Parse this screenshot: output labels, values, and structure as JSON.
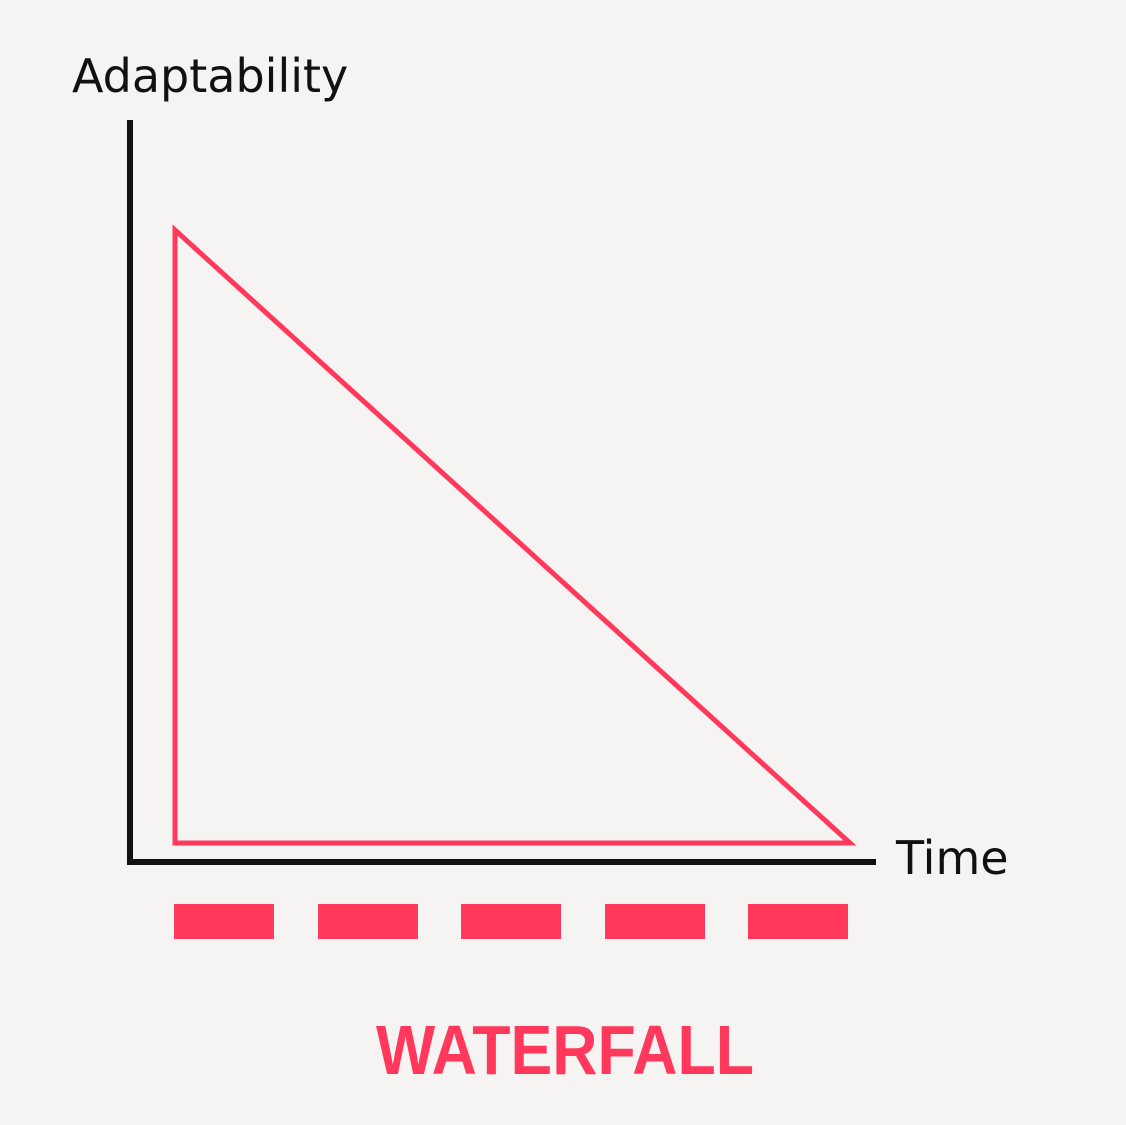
{
  "y_axis_label": "Adaptability",
  "x_axis_label": "Time",
  "caption": "WATERFALL",
  "phase_count": 5,
  "colors": {
    "background": "#f5f4f2",
    "axis": "#111111",
    "accent": "#ff385c"
  }
}
